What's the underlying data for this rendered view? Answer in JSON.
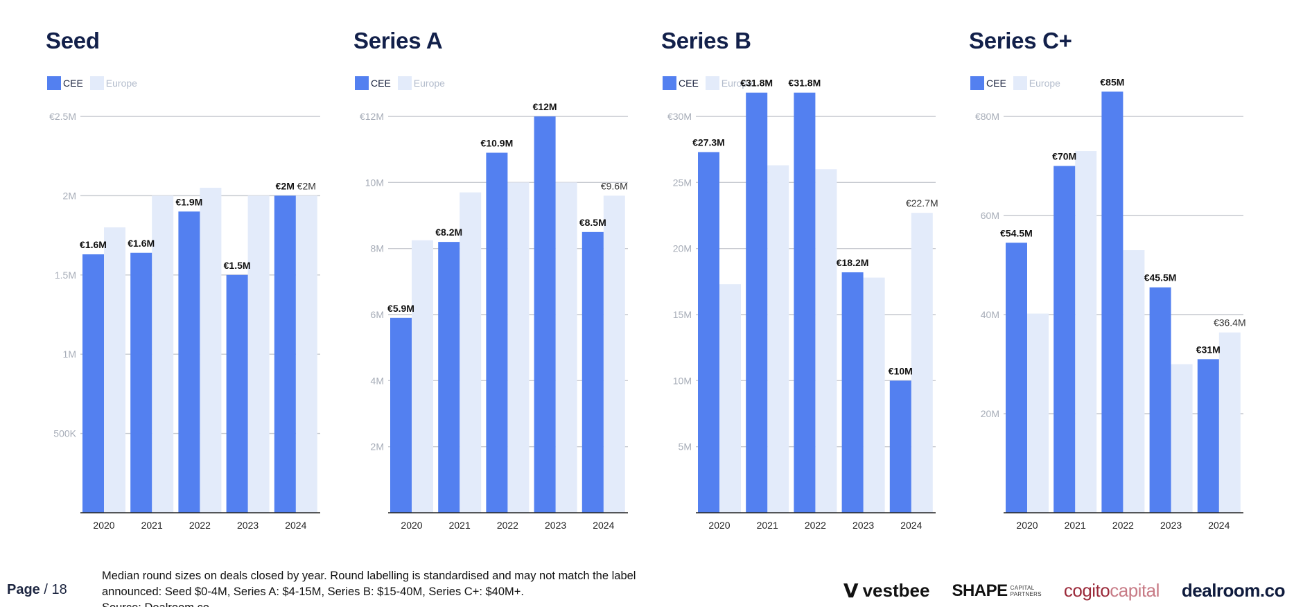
{
  "legend": {
    "cee_label": "CEE",
    "europe_label": "Europe"
  },
  "colors": {
    "cee": "#5380f0",
    "europe": "#e3ebfa",
    "title": "#12204a",
    "grid": "#c6c9cf"
  },
  "chart_data": [
    {
      "type": "bar",
      "title": "Seed",
      "categories": [
        "2020",
        "2021",
        "2022",
        "2023",
        "2024"
      ],
      "series": [
        {
          "name": "CEE",
          "values": [
            1.63,
            1.64,
            1.9,
            1.5,
            2.0
          ],
          "labels": [
            "€1.6M",
            "€1.6M",
            "€1.9M",
            "€1.5M",
            "€2M"
          ]
        },
        {
          "name": "Europe",
          "values": [
            1.8,
            2.0,
            2.05,
            2.0,
            2.0
          ],
          "labels": [
            "",
            "",
            "",
            "",
            "€2M"
          ]
        }
      ],
      "ylim": [
        0,
        2.5
      ],
      "yticks": [
        0.5,
        1,
        1.5,
        2,
        2.5
      ],
      "ytick_labels": [
        "500K",
        "1M",
        "1.5M",
        "2M",
        "€2.5M"
      ],
      "xlabel": "",
      "ylabel": "",
      "grid": true,
      "legend_position": "top-left"
    },
    {
      "type": "bar",
      "title": "Series A",
      "categories": [
        "2020",
        "2021",
        "2022",
        "2023",
        "2024"
      ],
      "series": [
        {
          "name": "CEE",
          "values": [
            5.9,
            8.2,
            10.9,
            12,
            8.5
          ],
          "labels": [
            "€5.9M",
            "€8.2M",
            "€10.9M",
            "€12M",
            "€8.5M"
          ]
        },
        {
          "name": "Europe",
          "values": [
            8.25,
            9.7,
            10.0,
            10.0,
            9.6
          ],
          "labels": [
            "",
            "",
            "",
            "",
            "€9.6M"
          ]
        }
      ],
      "ylim": [
        0,
        12
      ],
      "yticks": [
        2,
        4,
        6,
        8,
        10,
        12
      ],
      "ytick_labels": [
        "2M",
        "4M",
        "6M",
        "8M",
        "10M",
        "€12M"
      ],
      "xlabel": "",
      "ylabel": "",
      "grid": true,
      "legend_position": "top-left"
    },
    {
      "type": "bar",
      "title": "Series B",
      "categories": [
        "2020",
        "2021",
        "2022",
        "2023",
        "2024"
      ],
      "series": [
        {
          "name": "CEE",
          "values": [
            27.3,
            31.8,
            31.8,
            18.2,
            10
          ],
          "labels": [
            "€27.3M",
            "€31.8M",
            "€31.8M",
            "€18.2M",
            "€10M"
          ]
        },
        {
          "name": "Europe",
          "values": [
            17.3,
            26.3,
            26.0,
            17.8,
            22.7
          ],
          "labels": [
            "",
            "",
            "",
            "",
            "€22.7M"
          ]
        }
      ],
      "ylim": [
        0,
        30
      ],
      "yticks": [
        5,
        10,
        15,
        20,
        25,
        30
      ],
      "ytick_labels": [
        "5M",
        "10M",
        "15M",
        "20M",
        "25M",
        "€30M"
      ],
      "xlabel": "",
      "ylabel": "",
      "grid": true,
      "legend_position": "top-left"
    },
    {
      "type": "bar",
      "title": "Series C+",
      "categories": [
        "2020",
        "2021",
        "2022",
        "2023",
        "2024"
      ],
      "series": [
        {
          "name": "CEE",
          "values": [
            54.5,
            70,
            85,
            45.5,
            31
          ],
          "labels": [
            "€54.5M",
            "€70M",
            "€85M",
            "€45.5M",
            "€31M"
          ]
        },
        {
          "name": "Europe",
          "values": [
            40.2,
            73,
            53,
            30,
            36.4
          ],
          "labels": [
            "",
            "",
            "",
            "",
            "€36.4M"
          ]
        }
      ],
      "ylim": [
        0,
        80
      ],
      "yticks": [
        20,
        40,
        60,
        80
      ],
      "ytick_labels": [
        "20M",
        "40M",
        "60M",
        "€80M"
      ],
      "xlabel": "",
      "ylabel": "",
      "grid": true,
      "legend_position": "top-left"
    }
  ],
  "footer": {
    "page_label": "Page",
    "page_total": "/ 18",
    "note_line1": "Median round sizes on deals closed by year. Round labelling is standardised and may not match the label",
    "note_line2": "announced: Seed $0-4M, Series A: $4-15M, Series B: $15-40M, Series C+: $40M+.",
    "source": "Source:  Dealroom.co"
  },
  "logos": {
    "vestbee": "vestbee",
    "shape": "SHAPE",
    "shape_sub1": "CAPITAL",
    "shape_sub2": "PARTNERS",
    "cogito_a": "cogito",
    "cogito_b": "capital",
    "dealroom": "dealroom.co"
  }
}
